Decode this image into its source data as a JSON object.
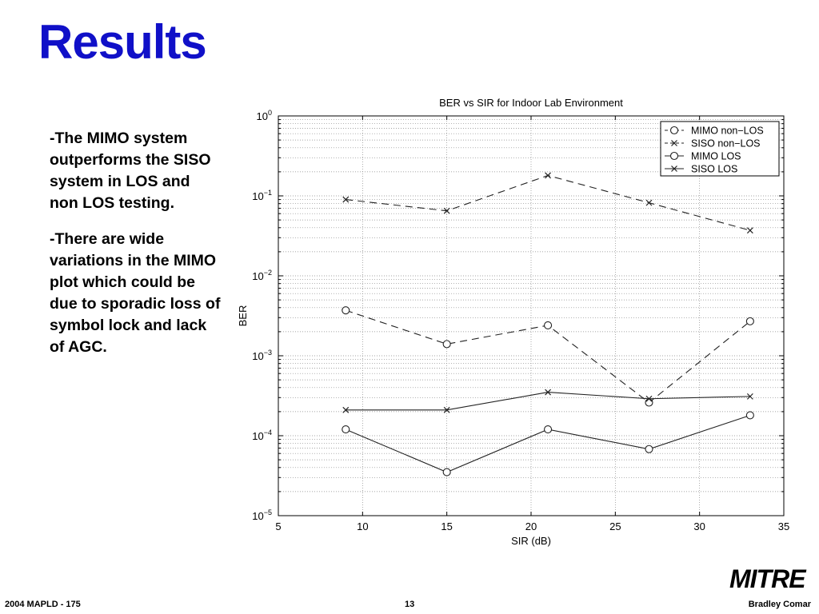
{
  "slide": {
    "title": "Results",
    "bullets": [
      "-The MIMO system outperforms the SISO system in LOS and non LOS testing.",
      "-There are wide variations in the MIMO plot which could be due to sporadic loss of symbol lock and lack of AGC."
    ],
    "logo": "MITRE",
    "footer_left": "2004 MAPLD - 175",
    "footer_center": "13",
    "footer_right": "Bradley Comar"
  },
  "chart_data": {
    "type": "line",
    "title": "BER vs SIR for Indoor Lab Environment",
    "xlabel": "SIR (dB)",
    "ylabel": "BER",
    "xlim": [
      5,
      35
    ],
    "ylim": [
      1e-05,
      1
    ],
    "yscale": "log",
    "grid": true,
    "legend_position": "top-right",
    "xticks": [
      "5",
      "10",
      "15",
      "20",
      "25",
      "30",
      "35"
    ],
    "yticks": [
      {
        "base": "10",
        "exp": "0"
      },
      {
        "base": "10",
        "exp": "−1"
      },
      {
        "base": "10",
        "exp": "−2"
      },
      {
        "base": "10",
        "exp": "−3"
      },
      {
        "base": "10",
        "exp": "−4"
      },
      {
        "base": "10",
        "exp": "−5"
      }
    ],
    "x": [
      9,
      15,
      21,
      27,
      33
    ],
    "series": [
      {
        "name": "MIMO non−LOS",
        "marker": "circle",
        "line": "dashed",
        "values": [
          0.0037,
          0.0014,
          0.0024,
          0.00026,
          0.0027
        ]
      },
      {
        "name": "SISO non−LOS",
        "marker": "x",
        "line": "dashed",
        "values": [
          0.09,
          0.065,
          0.18,
          0.082,
          0.037
        ]
      },
      {
        "name": "MIMO LOS",
        "marker": "circle",
        "line": "solid",
        "values": [
          0.00012,
          3.5e-05,
          0.00012,
          6.8e-05,
          0.00018
        ]
      },
      {
        "name": "SISO LOS",
        "marker": "x",
        "line": "solid",
        "values": [
          0.00021,
          0.00021,
          0.00035,
          0.00029,
          0.00031
        ]
      }
    ],
    "colors": {
      "line": "#222222",
      "grid": "#888888"
    }
  }
}
